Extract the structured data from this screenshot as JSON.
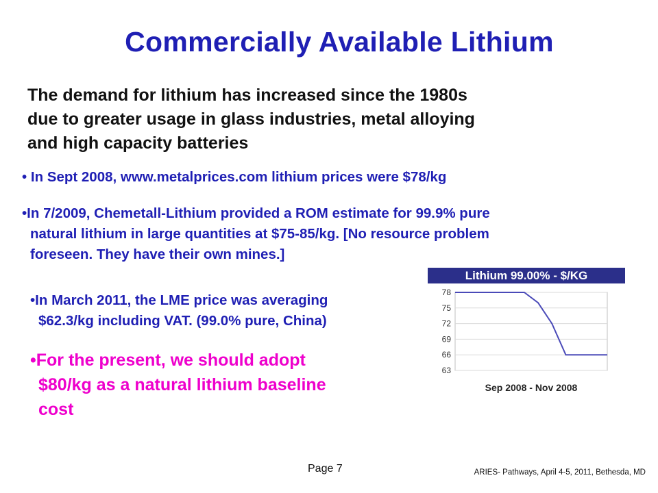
{
  "slide": {
    "title": "Commercially Available Lithium",
    "intro_lines": [
      "The demand for lithium has increased since the 1980s",
      "due to greater usage in glass industries, metal alloying",
      "and high capacity batteries"
    ],
    "bullets": [
      {
        "lines": [
          "• In Sept 2008, www.metalprices.com lithium prices were $78/kg"
        ]
      },
      {
        "lines": [
          "•In 7/2009, Chemetall-Lithium provided a ROM estimate for 99.9% pure",
          "natural lithium in large quantities at $75-85/kg. [No resource problem",
          "foreseen.  They have their own mines.]"
        ]
      },
      {
        "lines": [
          "•In March 2011, the LME price was averaging",
          "$62.3/kg including VAT. (99.0% pure, China)"
        ]
      },
      {
        "lines": [
          "•For the present, we should adopt",
          "$80/kg as a natural lithium baseline",
          "cost"
        ]
      }
    ],
    "page_label": "Page 7",
    "footer_credit": "ARIES- Pathways, April 4-5, 2011, Bethesda, MD"
  },
  "colors": {
    "title": "#1f1fb4",
    "bullets": "#1f1fb4",
    "highlight": "#ee00cc",
    "chart_header": "#2b2f8a",
    "line": "#4a4ab8"
  },
  "chart_data": {
    "type": "line",
    "title": "Lithium 99.00% - $/KG",
    "xlabel": "Sep 2008 - Nov 2008",
    "ylabel": "",
    "y_ticks": [
      78,
      75,
      72,
      69,
      66,
      63
    ],
    "ylim": [
      63,
      78
    ],
    "x": [
      0,
      1,
      2,
      3,
      4,
      5,
      6,
      7,
      8,
      9,
      10,
      11
    ],
    "series": [
      {
        "values": [
          78,
          78,
          78,
          78,
          78,
          78,
          76,
          72,
          66,
          66,
          66,
          66
        ]
      }
    ],
    "grid": true
  }
}
